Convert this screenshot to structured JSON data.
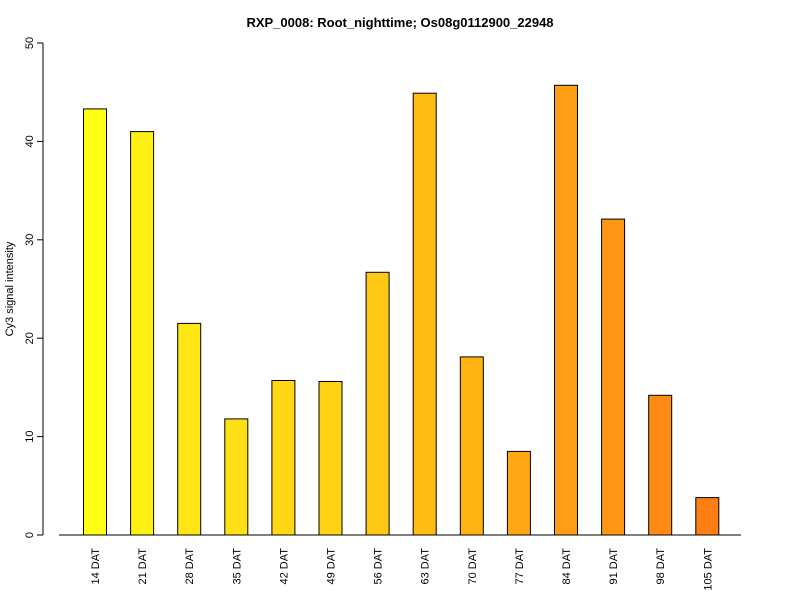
{
  "chart_data": {
    "type": "bar",
    "title": "RXP_0008: Root_nighttime; Os08g0112900_22948",
    "ylabel": "Cy3 signal intensity",
    "xlabel": "",
    "ylim": [
      0,
      50
    ],
    "yticks": [
      0,
      10,
      20,
      30,
      40,
      50
    ],
    "categories": [
      "14 DAT",
      "21 DAT",
      "28 DAT",
      "35 DAT",
      "42 DAT",
      "49 DAT",
      "56 DAT",
      "63 DAT",
      "70 DAT",
      "77 DAT",
      "84 DAT",
      "91 DAT",
      "98 DAT",
      "105 DAT"
    ],
    "values": [
      43.3,
      41.0,
      21.5,
      11.8,
      15.7,
      15.6,
      26.7,
      44.9,
      18.1,
      8.5,
      45.7,
      32.1,
      14.2,
      3.8
    ],
    "colors": [
      "#FFFF14",
      "#FFF014",
      "#FFE614",
      "#FFE014",
      "#FFD714",
      "#FFD214",
      "#FFC814",
      "#FFBC14",
      "#FFB414",
      "#FFA814",
      "#FF9E14",
      "#FF9614",
      "#FF8A14",
      "#FF7F14"
    ],
    "grid": false,
    "legend": "none"
  }
}
